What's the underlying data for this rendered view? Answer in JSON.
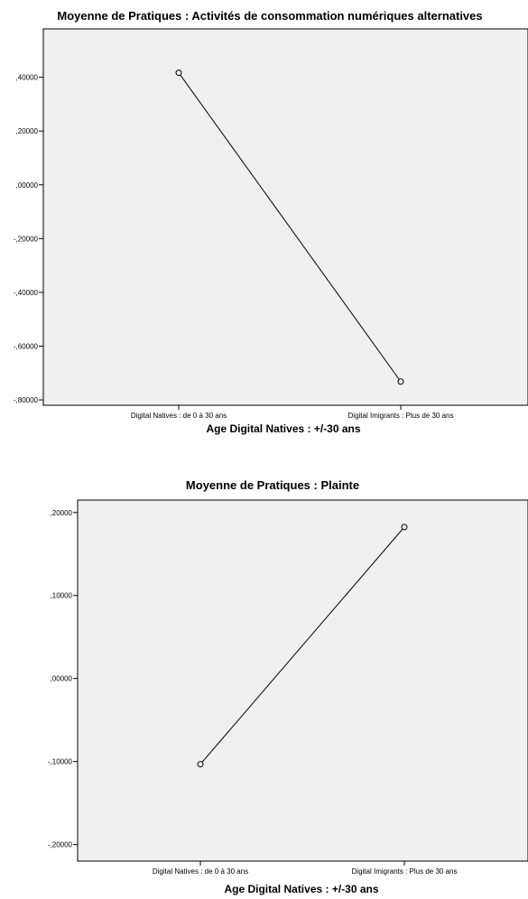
{
  "chart_data": [
    {
      "type": "line",
      "title": "Moyenne de Pratiques : Activités de consommation numériques alternatives",
      "xlabel": "Age Digital Natives : +/-30 ans",
      "ylabel": "",
      "categories": [
        "Digital Natives : de 0 à 30 ans",
        "Digital Imigrants : Plus de 30 ans"
      ],
      "series": [
        {
          "values": [
            0.4169,
            -0.7319
          ]
        }
      ],
      "yticks": [
        0.4,
        0.2,
        0.0,
        -0.2,
        -0.4,
        -0.6,
        -0.8
      ],
      "ytick_labels": [
        ",40000",
        ",20000",
        ",00000",
        "-,20000",
        "-,40000",
        "-,60000",
        "-,80000"
      ],
      "ylim": [
        -0.82,
        0.58
      ],
      "grid": false,
      "legend": "none"
    },
    {
      "type": "line",
      "title": "Moyenne de Pratiques : Plainte",
      "xlabel": "Age Digital Natives : +/-30 ans",
      "ylabel": "",
      "categories": [
        "Digital Natives : de 0 à 30 ans",
        "Digital Imigrants : Plus de 30 ans"
      ],
      "series": [
        {
          "values": [
            -0.1033,
            0.1825
          ]
        }
      ],
      "yticks": [
        0.2,
        0.1,
        0.0,
        -0.1,
        -0.2
      ],
      "ytick_labels": [
        ",20000",
        ",10000",
        ",00000",
        "-,10000",
        "-,20000"
      ],
      "ylim": [
        -0.22,
        0.215
      ],
      "grid": false,
      "legend": "none"
    }
  ]
}
